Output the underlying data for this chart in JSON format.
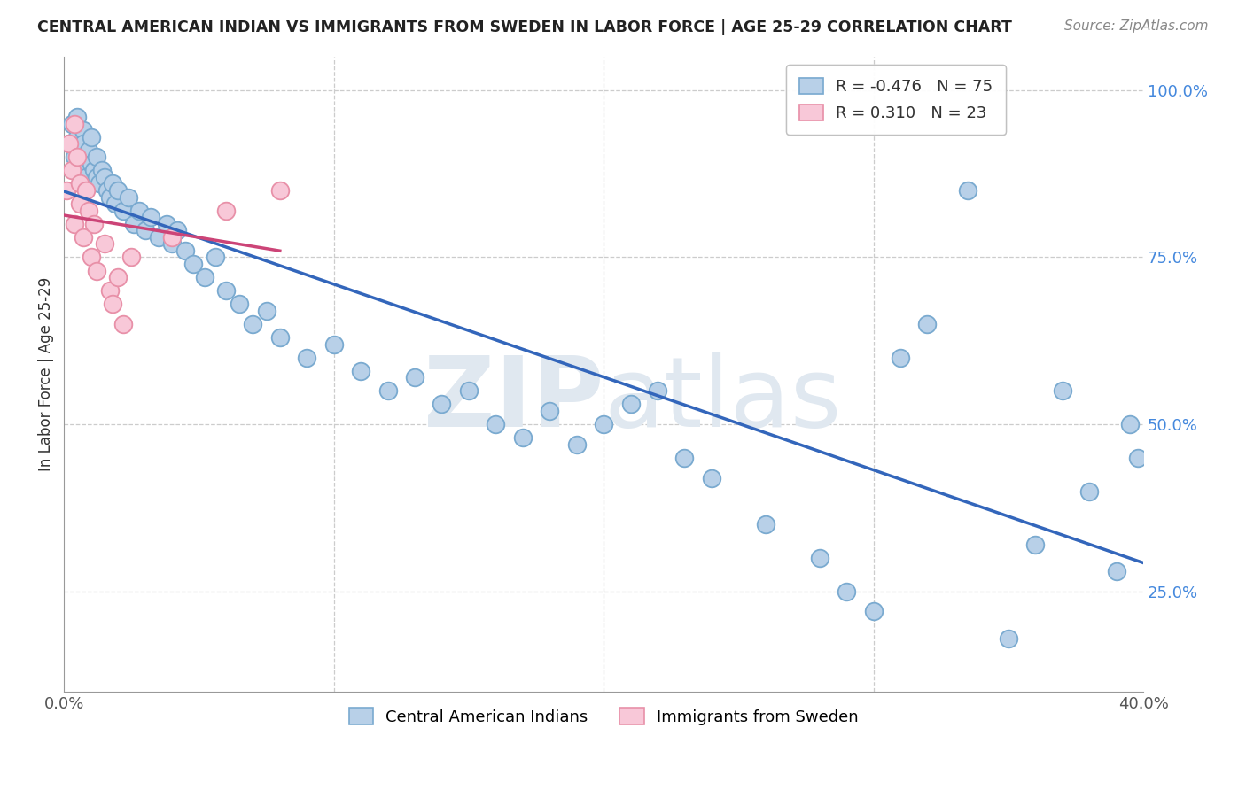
{
  "title": "CENTRAL AMERICAN INDIAN VS IMMIGRANTS FROM SWEDEN IN LABOR FORCE | AGE 25-29 CORRELATION CHART",
  "source": "Source: ZipAtlas.com",
  "ylabel": "In Labor Force | Age 25-29",
  "xlim": [
    0.0,
    0.4
  ],
  "ylim": [
    0.1,
    1.05
  ],
  "xticks": [
    0.0,
    0.1,
    0.2,
    0.3,
    0.4
  ],
  "xtick_labels": [
    "0.0%",
    "",
    "",
    "",
    "40.0%"
  ],
  "yticks": [
    0.25,
    0.5,
    0.75,
    1.0
  ],
  "ytick_labels": [
    "25.0%",
    "50.0%",
    "75.0%",
    "100.0%"
  ],
  "blue_R": -0.476,
  "blue_N": 75,
  "pink_R": 0.31,
  "pink_N": 23,
  "blue_color": "#b8d0e8",
  "blue_edge": "#7aaad0",
  "pink_color": "#f8c8d8",
  "pink_edge": "#e890a8",
  "blue_line_color": "#3366bb",
  "pink_line_color": "#cc4477",
  "watermark_color": "#e0e8f0",
  "background_color": "#ffffff",
  "blue_x": [
    0.002,
    0.003,
    0.004,
    0.004,
    0.005,
    0.005,
    0.006,
    0.006,
    0.007,
    0.007,
    0.008,
    0.008,
    0.009,
    0.01,
    0.01,
    0.011,
    0.012,
    0.012,
    0.013,
    0.014,
    0.015,
    0.016,
    0.017,
    0.018,
    0.019,
    0.02,
    0.022,
    0.024,
    0.026,
    0.028,
    0.03,
    0.032,
    0.035,
    0.038,
    0.04,
    0.042,
    0.045,
    0.048,
    0.052,
    0.056,
    0.06,
    0.065,
    0.07,
    0.075,
    0.08,
    0.09,
    0.1,
    0.11,
    0.12,
    0.13,
    0.14,
    0.15,
    0.16,
    0.17,
    0.18,
    0.19,
    0.2,
    0.21,
    0.22,
    0.23,
    0.24,
    0.26,
    0.28,
    0.29,
    0.3,
    0.31,
    0.32,
    0.335,
    0.35,
    0.36,
    0.37,
    0.38,
    0.39,
    0.395,
    0.398
  ],
  "blue_y": [
    0.92,
    0.95,
    0.9,
    0.88,
    0.93,
    0.96,
    0.91,
    0.89,
    0.94,
    0.92,
    0.9,
    0.87,
    0.91,
    0.93,
    0.89,
    0.88,
    0.87,
    0.9,
    0.86,
    0.88,
    0.87,
    0.85,
    0.84,
    0.86,
    0.83,
    0.85,
    0.82,
    0.84,
    0.8,
    0.82,
    0.79,
    0.81,
    0.78,
    0.8,
    0.77,
    0.79,
    0.76,
    0.74,
    0.72,
    0.75,
    0.7,
    0.68,
    0.65,
    0.67,
    0.63,
    0.6,
    0.62,
    0.58,
    0.55,
    0.57,
    0.53,
    0.55,
    0.5,
    0.48,
    0.52,
    0.47,
    0.5,
    0.53,
    0.55,
    0.45,
    0.42,
    0.35,
    0.3,
    0.25,
    0.22,
    0.6,
    0.65,
    0.85,
    0.18,
    0.32,
    0.55,
    0.4,
    0.28,
    0.5,
    0.45
  ],
  "pink_x": [
    0.001,
    0.002,
    0.003,
    0.004,
    0.004,
    0.005,
    0.006,
    0.006,
    0.007,
    0.008,
    0.009,
    0.01,
    0.011,
    0.012,
    0.015,
    0.017,
    0.018,
    0.02,
    0.022,
    0.025,
    0.04,
    0.06,
    0.08
  ],
  "pink_y": [
    0.85,
    0.92,
    0.88,
    0.8,
    0.95,
    0.9,
    0.83,
    0.86,
    0.78,
    0.85,
    0.82,
    0.75,
    0.8,
    0.73,
    0.77,
    0.7,
    0.68,
    0.72,
    0.65,
    0.75,
    0.78,
    0.82,
    0.85
  ]
}
